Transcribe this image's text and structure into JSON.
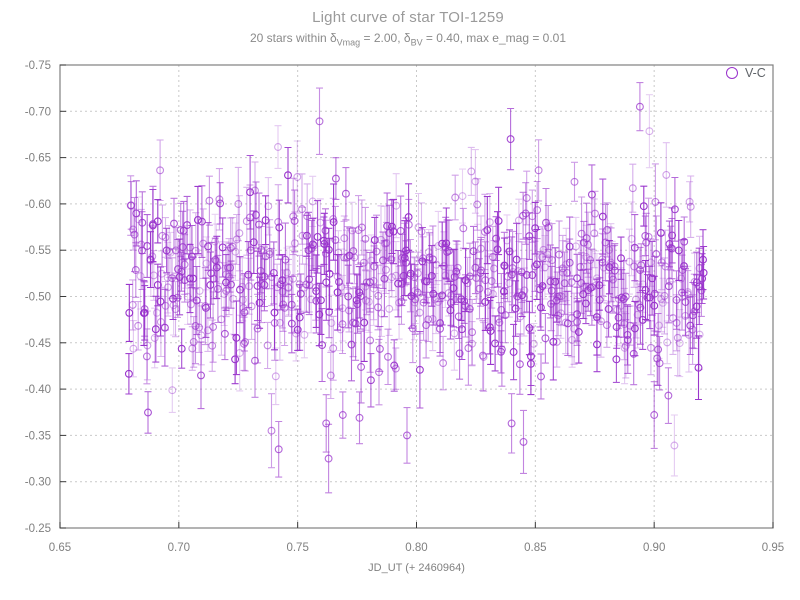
{
  "title": "Light curve of star TOI-1259",
  "subtitle": {
    "part1": "20 stars within δ",
    "sub1": "Vmag",
    "part2": " = 2.00, δ",
    "sub2": "BV",
    "part3": " = 0.40, max e_mag = 0.01"
  },
  "legend": {
    "label": "V-C"
  },
  "x_axis": {
    "label": "JD_UT (+ 2460964)",
    "ticks": [
      "0.65",
      "0.70",
      "0.75",
      "0.80",
      "0.85",
      "0.90",
      "0.95"
    ]
  },
  "y_axis": {
    "ticks": [
      "-0.75",
      "-0.70",
      "-0.65",
      "-0.60",
      "-0.55",
      "-0.50",
      "-0.45",
      "-0.40",
      "-0.35",
      "-0.30",
      "-0.25"
    ]
  },
  "colors": {
    "series": "#9933cc",
    "frame": "#808080",
    "grid": "#c9c9c9",
    "tick": "#3a3a3a",
    "tick_label": "#808080",
    "title": "#9a9a9a",
    "subtitle": "#8a8a8a",
    "legend_text": "#5f6368"
  },
  "chart_data": {
    "type": "scatter",
    "title": "Light curve of star TOI-1259",
    "subtitle": "20 stars within δVmag = 2.00, δBV = 0.40, max e_mag = 0.01",
    "xlabel": "JD_UT (+ 2460964)",
    "ylabel": "",
    "xlim": [
      0.65,
      0.95
    ],
    "ylim": [
      -0.25,
      -0.75
    ],
    "y_axis_inverted": true,
    "x_tick_step": 0.05,
    "y_tick_step": 0.05,
    "grid": "dotted",
    "legend": {
      "position": "top-right",
      "entries": [
        {
          "label": "V-C",
          "marker": "open-circle",
          "color": "#9933cc"
        }
      ]
    },
    "series": [
      {
        "name": "V-C",
        "marker": "open-circle",
        "error_bars": true,
        "color": "#9933cc",
        "n_points": 640,
        "x_start": 0.679,
        "x_end": 0.921,
        "y_mean": -0.52,
        "y_std": 0.046,
        "err_min": 0.021,
        "err_max": 0.042,
        "seed": 1259,
        "notable_points": [
          [
            0.742,
            -0.335,
            0.03
          ],
          [
            0.762,
            -0.363,
            0.031
          ],
          [
            0.763,
            -0.325,
            0.037
          ],
          [
            0.769,
            -0.372,
            0.025
          ],
          [
            0.776,
            -0.369,
            0.028
          ],
          [
            0.796,
            -0.35,
            0.03
          ],
          [
            0.84,
            -0.363,
            0.032
          ],
          [
            0.845,
            -0.343,
            0.034
          ],
          [
            0.9,
            -0.372,
            0.036
          ],
          [
            0.906,
            -0.393,
            0.03
          ],
          [
            0.894,
            -0.705,
            0.026
          ]
        ]
      }
    ]
  }
}
